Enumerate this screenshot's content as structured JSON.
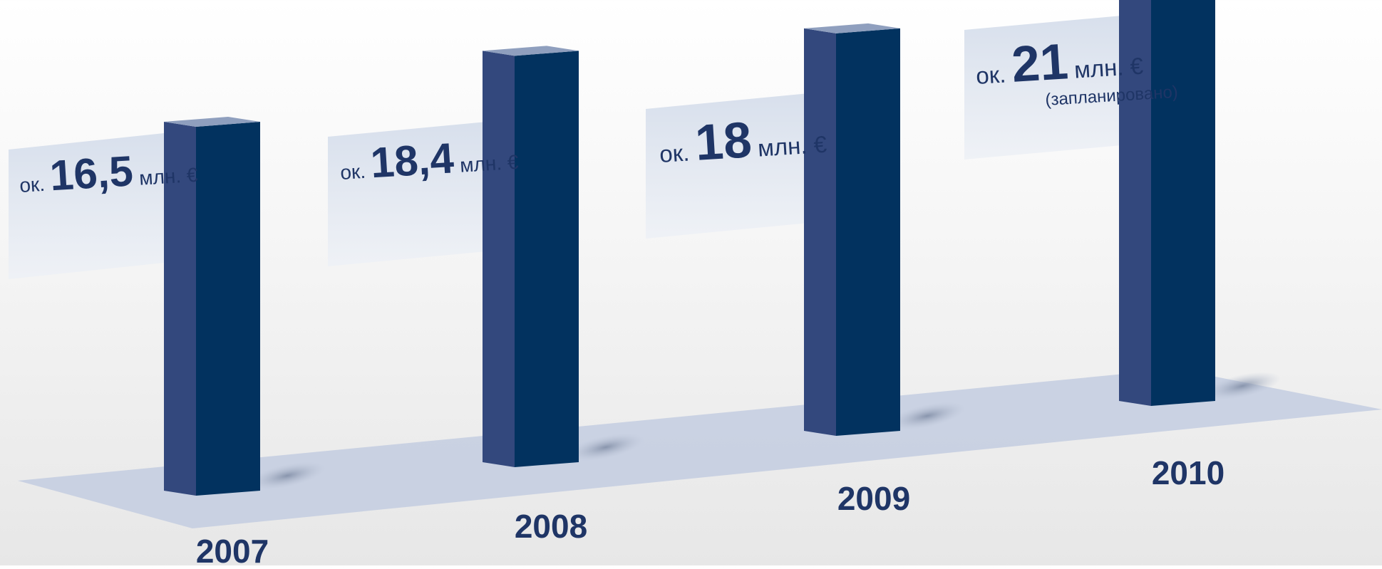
{
  "chart_data": {
    "type": "bar",
    "title": "",
    "xlabel": "",
    "ylabel": "",
    "categories": [
      "2007",
      "2008",
      "2009",
      "2010"
    ],
    "values": [
      16.5,
      18.4,
      18,
      21
    ],
    "unit": "млн. €",
    "data_labels": [
      {
        "prefix": "ок.",
        "value": "16,5",
        "unit": "млн. €",
        "note": ""
      },
      {
        "prefix": "ок.",
        "value": "18,4",
        "unit": "млн. €",
        "note": ""
      },
      {
        "prefix": "ок.",
        "value": "18",
        "unit": "млн. €",
        "note": ""
      },
      {
        "prefix": "ок.",
        "value": "21",
        "unit": "млн. €",
        "note": "(запланировано)"
      }
    ],
    "grid": false,
    "legend": "none",
    "colors": {
      "bar_front": "#02325f",
      "bar_side": "#33487d",
      "bar_top": "#8f9fbe",
      "floor": "#c3cde0",
      "label_panel": "#dfe6f1",
      "text": "#1f3566"
    }
  }
}
